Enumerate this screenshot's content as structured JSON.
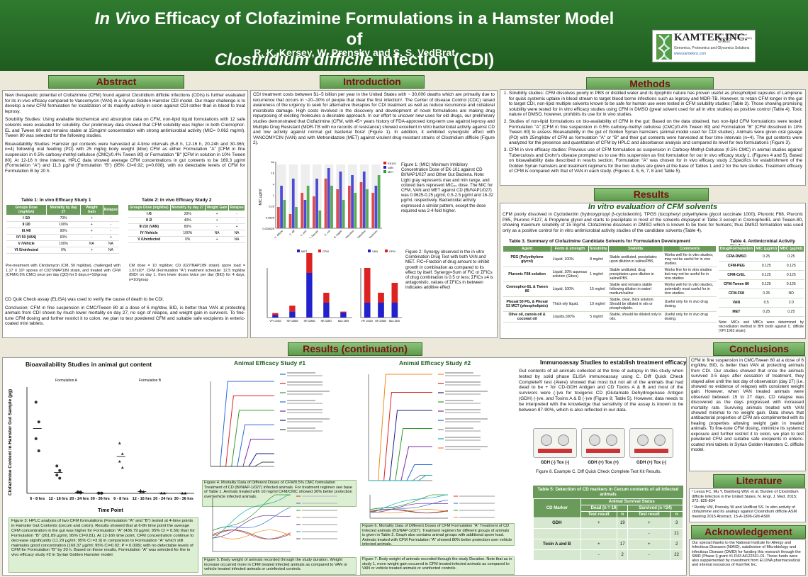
{
  "header": {
    "title_italic": "In Vivo",
    "title_1": " Efficacy of Clofazimine Formulations in a Hamster Model of",
    "title_2_italic": "Clostridium difficile",
    "title_2": " Infection (CDI)",
    "authors": "R. K. Kersey, W. Prensky and S. S. VedBrat",
    "logo": "KAMTEK,INC.",
    "logo_sub": "Genomics, Proteomics and Glycomics Solutions",
    "logo_web": "www.kamtekinc.com",
    "logo_addr": "8801 International Blvd Frederick, MD 21703 (240) 457-4616",
    "contact": "Contact Info: shanan@kamtekinc.com"
  },
  "headings": {
    "abstract": "Abstract",
    "introduction": "Introduction",
    "methods": "Methods",
    "results": "Results",
    "results_cont": "Results (continuation)",
    "conclusions": "Conclusions",
    "literature": "Literature",
    "ack": "Acknowledgement"
  },
  "abstract": {
    "p1": "New therapeutic potential of Clofazimine (CFM) found against Clostridium difficile infections (CDIs) is further evaluated for its in-vivo efficacy compared to Vancomycin (VAN) in a Syrian Golden Hamster CDI model. Our major challenge is to develop a new CFM formulation for localization of its majority activity in colon against CDI rather than in blood to treat leprosy.",
    "p2": "Solubility Studies: Using available biochemical and absorption data on CFM, non-lipid liquid formulations with 12 safe solvents were evaluated for solubility. Our preliminary data showed that CFM solubility was higher in both Cremophor-EL and Tween 80 and remains stable at 15mg/ml concentration with strong antimicrobial activity (MIC= 0.062 mg/ml). Tween 80 was selected for the following studies.",
    "p3": "Bioavailability Studies: Hamster gut contents were harvested at 4-time intervals (6-8 h, 12-16 h, 20-24h and 30-36h; n=4) following oral feeding (PO) with 25 mg/kg body weight (kbw) CFM as either Formulation \"A\" [CFM in fine suspension in 0.5% carboxy-methyl cellulose (CMC)/0.4% Tween 80] or Formulation \"B\" [CFM in solution in 10% Tween 80]. At 12-16 h time interval, HPLC data showed average CFM concentrations in gut contents to be 169.3 µg/ml (Formulation \"A\") and 11.3 µg/ml (Formulation \"B\") (95% CI=0.92; p=0.008), with no detectable levels of CFM for Formulation B by 20 h.",
    "t1_title": "Table 1: In vivo Efficacy Study 1",
    "t2_title": "Table 2: In vivo Efficacy Study 2",
    "t1_head": [
      "Groups Dose (mg/kbw)",
      "Mortality by day 27",
      "Weight Gain",
      "Relapse"
    ],
    "t1_rows": [
      [
        "I /10",
        "70%",
        "+",
        "-"
      ],
      [
        "II /20",
        "100%",
        "+",
        "-"
      ],
      [
        "III /40",
        "90%",
        "+",
        "-"
      ],
      [
        "IV/ 50 (VAN)",
        "60%",
        "-",
        "+"
      ],
      [
        "V /Vehicle",
        "100%",
        "NA",
        "NA"
      ],
      [
        "VI /Uninfected",
        "0%",
        "+",
        "NA"
      ]
    ],
    "t2_head": [
      "Groups Dose (mg/kbw)",
      "Mortality by day 27",
      "Weight Gain",
      "Relapse"
    ],
    "t2_rows": [
      [
        "I /6",
        "20%",
        "+",
        "-"
      ],
      [
        "II /2",
        "40%",
        "+",
        "-"
      ],
      [
        "III /10 (VAN)",
        "80%",
        "-",
        "+"
      ],
      [
        "IV /Vehicle",
        "100%",
        "NA",
        "NA"
      ],
      [
        "V /Uninfected",
        "0%",
        "+",
        "NA"
      ]
    ],
    "t1_note": "Pre-treatment with Clindamycin (CM, 50 mg/kbw), challenged with 1.17 X 10⁵ spores of C027/NAP1/BI strain, and treated with CFM (CFM/0.5% CMC) once per day (QD) for 5 days.n=10/group",
    "t2_note": "CM dose = 10 mg/kbw; CD (027/NAP1/BI strain) spore load = 1.67x10⁴. CFM (Formulation \"A\") treatment schedule: 12.5 mg/kbw (BID) on day 1, then lower doses twice per day (BID) for 4 days, n=10/group",
    "p4": "CD Quik Check assay (ELISA) was used to verify the cause of death to be CDI.",
    "p5": "Conclusion: CFM in fine suspension in CMC/Tween 80 at a dose of 6 mg/kbw, BID, is better than VAN at protecting animals from CDI shown by much lower mortality on day 27, no sign of relapse, and weight gain in survivors. To fine-tune CFM dosing and further restrict it to colon, we plan to test powdered CFM and suitable safe excipients in enteric-coated mini tablets."
  },
  "intro": {
    "p1": "CDI treatment costs between $1–5 billion per year in the United States with ~ 30,000 deaths which are primarily due to recurrence that occurs in ~20–30% of people that clear the first infection¹. The Center of disease Control (CDC) raised awareness of the urgency to seek for alternative therapies for CDI treatment as well as reduce recurrence and collateral microbiota damage. High costs involved in the discovery and development of novel formulations are making drug repurposing of existing molecules a desirable approach. In our effort to uncover new uses for old drugs, our preliminary studies demonstrated that Clofazimine (CFM, with 45+ years history of FDA-approved long-term use against leprosy and Multiple Drug Resistant (MDR-TB with no records of resistance) showed excellent in vitro bactericidal activity against CD and low activity against normal gut bacterial flora² (Figure 1). In addition, it exhibited synergistic effect with VANCOMYCIN (VAN) and with Metronidazole (MET) against virulent drug-resistant strains of Clostridium difficile (Figure 2).",
    "fig1": "Figure 1: (MIC) Minimum Inhibitory Concentration Dose of EK-101 against CD BI/NAP1/027 and Other Gut Bacteria. Note: Light gray represents max and min range, and colored bars represent MIC₅₀ dose. The MIC for CFM, VAN and MET against CD (BI/NAP1/027) was 0.0625-0.25 µg/ml, 0.5-2.5 µg/ml and 16-32 µg/ml, respectively. Bactericidal activity expressed a similar pattern, except the dose required was 2-4-fold higher.",
    "fig2": "Figure 2: Synergy observed in the in vitro Combination Drug Test with both VAN and MET. FIC=Fraction of drug amount to inhibit growth in combination as compared to its effect by itself. Synergy=Sum of FIC or ΣFICs of drug combination is 0.5 or less; ΣFICs ≥4 is antagonistic, values of ΣFICs in between indicates additive effect"
  },
  "methods": {
    "items": [
      "Solubility studies: CFM dissolves poorly in PBS or distilled water and its lipophilic nature has proven useful as phospholipid capsules of Lamprene for quick systemic uptake in blood stream to target blood borne infections such as leprosy and MDR-TB. However, to retain CFM longer in the gut to target CDI, non-lipid multiple solvents known to be safe for human use were tested in CFM solubility studies (Table 3). Those showing promising solubility were tested for in vitro efficacy studies using CFM in DMSO (great solvent used for all in vitro studies) as positive control (Table 4). Toxic nature of DMSO, however, prohibits its use for in vivo studies.",
      "Studies of non-lipid formulations on bio-availability of CFM in the gut: Based on the data obtained, two non-lipid CFM formulations were tested: Formulation \"A\" [CFM in fine suspension in 0.5% carboxy-methyl cellulose (CMC)/0.4% Tween 80] and Formulation \"B\" [CFM dissolved in 10% Tween 80] to assess Bioavailability in the gut of Golden Syrian hamsters (animal model used for CDI studies). Animals were given oral gavage (PO) with 25mg/kbw of CFM as formulation \"A\" or \"B\" and their gut contents were harvested at four time intervals (n=4). The gut contents were analyzed for the presence and quantitation of CFM by HPLC and absorbance analysis and compared its level for two formulations (Figure 3).",
      "CFM in vivo efficacy studies: Previous use of CFM formulation as suspension in Carboxy-Methyl-Cellulose (0.5% CMC) in animal studies against Tuberculosis and Crohn's disease prompted us to use this suspension as first formulation for our in vivo efficacy study 1. (Figures 4 and 5). Based on bioavailability data described in results section, Formulation \"A\" was chosen for in vivo efficacy study 2.Specifics for establishment of the Golden Syrian hamsters and treatment regimens for the two studies are given at the base of Tables 1 and 2 for the two studies. Treatment efficacy of CFM is compared with that of VAN in each study. (Figures 4, 5, 6, 7, 8 and Table 5)."
    ]
  },
  "results": {
    "sub": "In vitro evaluation of CFM solvents",
    "p1": "CFM poorly dissolved in Cyclodextrin (hydroxypropyl β-cyclodextrin), TPGS (tocopheryl polyethylene glycol succinate 1000), Pluronic F68, Pluronic P85, Pluronic F127, & Propylene glycol and starts to precipitate in most of the solvents displayed in Table 3 except in CremophorEL and Tween-80, showing maximum solubility of 15 mg/ml. Clofazimine dissolves in DMSO which is known to be toxic for humans; thus DMSO formulation was used only as a positive control for in vitro antimicrobial activity studies of the candidate solvents (Table 4).",
    "t3_title": "Table 3. Summary of Clofazimine Candidate Solvents for Formulation Development",
    "t3_head": [
      "Agent",
      "Form & strength",
      "Solubility",
      "Stability",
      "Comments"
    ],
    "t3_rows": [
      [
        "PEG (Polyethylene glycol)",
        "Liquid, 100%",
        "8 mg/ml",
        "Stable undiluted, precipitates upon dilution in saline/PBS",
        "Works well for in vitro studies; may not be useful for in vivo studies."
      ],
      [
        "Pluronic F68 solution",
        "Liquid, 10% aqueous solution (Gibco)",
        "1 mg/ml",
        "Stable undiluted; drug precipitates upon dilution in saline/PBS",
        "Works fine for in vitro studies but may not be useful for in vivo studies"
      ],
      [
        "Cremophor-EL & Tween 80",
        "Liquid, 100%",
        "15 mg/ml",
        "Stable and remains stable following dilution in water/ medium/saline",
        "Works well for in vitro studies, potentially most useful for in vivo studies."
      ],
      [
        "Phosal 50 PG, & Phosal 53 MCT (phospholipids)",
        "Thick oily liquid,",
        "10 mg/ml",
        "Stable, clear, thick solution. Should be diluted in oils or phospholipids.",
        "Useful only for in vivo drug dosing."
      ],
      [
        "Olive oil, canola oil & coconut oil",
        "Liquids,100%",
        "5 mg/ml",
        "Stable, should be diluted only in oils.",
        "Useful only for in vivo drug dosing."
      ]
    ],
    "t4_title": "Table 4. Antimicrobial Activity Studies",
    "t4_head": [
      "Drug/Formulation",
      "MIC (µg/ml)",
      "MBC (µg/ml)"
    ],
    "t4_rows": [
      [
        "CFM-DMSO",
        "0.25",
        "0.25"
      ],
      [
        "CFM-PEG",
        "0.125",
        "0.125"
      ],
      [
        "CFM-CrEL",
        "0.125",
        "0.125"
      ],
      [
        "CFM-Tween 80",
        "0.125",
        "0.125"
      ],
      [
        "CFM-F68",
        "0.25",
        "ND"
      ],
      [
        "VAN",
        "0.5",
        "2.0"
      ],
      [
        "MET",
        "0.25",
        "0.25"
      ]
    ],
    "t4_note": "Note: MICs and MBCs were determined by microdilution method in BHI broth against C. difficile (VPI 1063 strain)."
  },
  "cont": {
    "bio_title": "Bioavailability Studies in animal gut content",
    "fig3": "Figure 3: HPLC analysis of two CFM formulations (Formulation \"A\" and \"B\") tested at 4-time points in Hamster Gut Contents (cecum and colon). Results showed that at 6-8h time point the average CFM concentration in the gut was higher for Formulation \"A\" (436.79 µg/ml, 95% CI = 0.56) than for Formulation \"B\" (261.89 µg/ml, 95% CI=0.81). At 12-16h time point, CFM concentration continue to decrease significantly (11.29 µg/ml; 95% CI =3.9) in comparison to Formulation \"A\" which still maintains good concentration (169.37 µg/ml; 95% CI=0.92; P = 0.008); with no detectable levels of CFM for Formulation \"B\" by 20 h. Based on these results, Formulation \"A\" was selected for the in vivo efficacy study #2 in Syrian Golden Hamster model.",
    "eff1_title": "Animal  Efficacy Study #1",
    "eff2_title": "Animal  Efficacy Study #2",
    "fig4": "Figure 4. Mortality Data of Different Doses of CFM/0.5% CMC formulation Treatment of CD (BI/NAP-1/027) Infected animals. For treatment regimen see base of Table 1. Animals treated with 10 mg/ml CFM/CMC showed 30% better protection over vehicle infected animals.",
    "fig5": "Figure 5. Body weight of animals recorded through the study duration. Weight increase occurred more in CFM treated infected animals as compared to VAN or vehicle treated infected animals or uninfected controls.",
    "fig6": "Figure 6. Mortality Data of Different Doses of CFM Formulation \"A\" Treatment of CD Infected animals (B1/NAP-1/027). Treatment regimen for different groups of animals is given in Table 2. Graph also contains animal groups with additional spore load. Animals treated with CFM Formulation \"A\" showed 80% better protection over vehicle infected animals.",
    "fig7": "Figure 7. Body weight of animals recorded through the study Duration. Note that as in study 1, more weight gain occurred in CFM treated infected animals as compared to VAN or vehicle treated animals or uninfected controls.",
    "immuno_title": "Immunoassay Studies to establish treatment efficacy",
    "immuno_p": "Gut contents of all animals collected at the time of autopsy in this study when tested by solid phase ELISA immunoassay using C. Diff Quick Check Complete® test (Alere) showed that most but not all of the animals that had dead to be + for CD-GDH Antigen and CD Toxins A & B and most of the survivors were (-)ve for toxigenic CD (Glutamate Dehydrogenase Antigen (GDH) (-)ve, and Toxins A & B (-)ve (Figure 8; Table 5). However, data needs to be interpreted with the knowledge that sensitivity of the assay is known to be between 87-90%, which is also reflected in our data.",
    "kit_labels": [
      "GDH (-) Tox (-)",
      "GDH (+) Tox (+)",
      "GDH (+) Tox (-)"
    ],
    "fig8": "Figure 8. Example C. Diff Quick Check Complete Test Kit Results.",
    "t5_title": "Table 5: Detection of CD markers in Cecum contents of all infected animals",
    "t5_head1": [
      "CD Marker",
      "Animal Survival Status"
    ],
    "t5_head2": [
      "Dead (n = 19)",
      "Survived (n =24)"
    ],
    "t5_head3": [
      "Test result",
      "n",
      "Test result",
      "n"
    ],
    "t5_rows": [
      [
        "GDH",
        "+",
        "19",
        "+",
        "3"
      ],
      [
        "",
        "",
        "",
        "-",
        "21"
      ],
      [
        "Toxin A and B",
        "+",
        "17",
        "+",
        "2"
      ],
      [
        "",
        "-",
        "2",
        "-",
        "22"
      ]
    ]
  },
  "conclusions": "CFM in fine suspension in CMC/Tween 80 at a dose of 6 mg/kbw, BID, is better than VAN at protecting animals from CDI. Our studies showed that once the animals survived 3-5 days after cessation of treatment, they stayed alive until the last day of observation (day 27) (i.e. showed no evidence of relapse) with consistent weight gain. However, when VAN treated animals were observed between 15 to 27 days, CD relapse was discovered as the days progressed with increased mortality rate. Surviving animals treated with VAN showed minimal to no weight gain. Data shows that antibacterial properties of CFM are complimented with its healing properties allowing weight gain in treated animals. To fine-tune CFM dosing, minimize its systemic exposure and further restrict it to colon, we plan to test powdered CFM and suitable safe excipients in enteric-coated mini tablets in Syrian Golden Hamsters C. difficile model.",
  "literature": [
    "¹ Lessa FC, Mu Y, Bamberg WM, et al. Burden of Clostridium difficile Infection in the United States. N. Engl. J. Med. 2015; 372: 825-834",
    "² Reddy VM, Prensky W and VedBrat SS. In vitro activity of clofazimine and its analogs against Clostridium difficile ASM meeting 2015 Abstract, 15-A-1896-GM-ASM."
  ],
  "ack": "Our special thanks to the National Institute for Allergy and Infectious Diseases (NIAID), subdivision of Microbiology and infectious Disease (DMID) for funding this research through the SBIR (Phase I) grant #1 R43 AI122531-01. These funds were also supplemented by investment from ELONA pharmaceutical and internal resources of KamTek Inc.",
  "chart_data": [
    {
      "type": "bar",
      "title": "",
      "ylabel": "MIC µg/ml",
      "categories": [
        "C. difficile",
        "C. diff",
        "C. perf",
        "E. faecalis",
        "E. coli",
        "B. fragilis",
        "Bacteroides",
        "Lactobacillus",
        "Bifidobacterium"
      ],
      "series": [
        {
          "name": "EK101",
          "color": "#d22"
        },
        {
          "name": "VAN",
          "color": "#22c"
        },
        {
          "name": "MET",
          "color": "#393"
        }
      ],
      "yticks": [
        "0.015625",
        "0.0625",
        "0.25",
        "1",
        "4",
        "16",
        "64"
      ]
    },
    {
      "type": "bar",
      "title": "",
      "categories": [
        "VPI 10463",
        "NR 32885",
        "NR 32886",
        "NR 32887",
        "BAA 1805"
      ],
      "series": [
        {
          "name": "MET",
          "color": "#22c",
          "values": [
            0.05,
            0.12,
            0.9,
            0.3,
            0.1
          ]
        },
        {
          "name": "CFM",
          "color": "#d22",
          "values": [
            0.1,
            0.3,
            1.0,
            0.5,
            0.05
          ]
        }
      ]
    },
    {
      "type": "bar",
      "title": "",
      "categories": [
        "VPI 10463",
        "NR 32885",
        "BAA 1805"
      ],
      "series": [
        {
          "name": "VAN",
          "values": [
            0.3,
            0.3,
            0.3
          ]
        },
        {
          "name": "CFM",
          "values": [
            0.7,
            0.2,
            0.4
          ]
        }
      ]
    },
    {
      "type": "scatter",
      "title": "Bioavailability Studies in animal gut content",
      "ylabel": "Clofazimine Content in Hamster Gut Sample (µg)",
      "xlabel": "Time Point",
      "groups": [
        "Formulation A",
        "Formulation B"
      ],
      "categories": [
        "6 - 8 hrs",
        "12 - 16 hrs",
        "20 - 24 hrs",
        "30 - 36 hrs"
      ],
      "series": [
        {
          "name": "Formulation A",
          "values": [
            [
              600,
              470,
              360,
              280
            ],
            [
              180,
              150,
              120,
              100
            ],
            [
              10,
              8,
              5,
              3
            ],
            [
              2,
              1,
              1,
              1
            ]
          ]
        },
        {
          "name": "Formulation B",
          "values": [
            [
              330,
              260,
              210,
              170
            ],
            [
              20,
              12,
              9,
              5
            ],
            [
              2,
              1,
              1,
              1
            ],
            [
              1,
              1,
              0,
              0
            ]
          ]
        }
      ]
    }
  ]
}
